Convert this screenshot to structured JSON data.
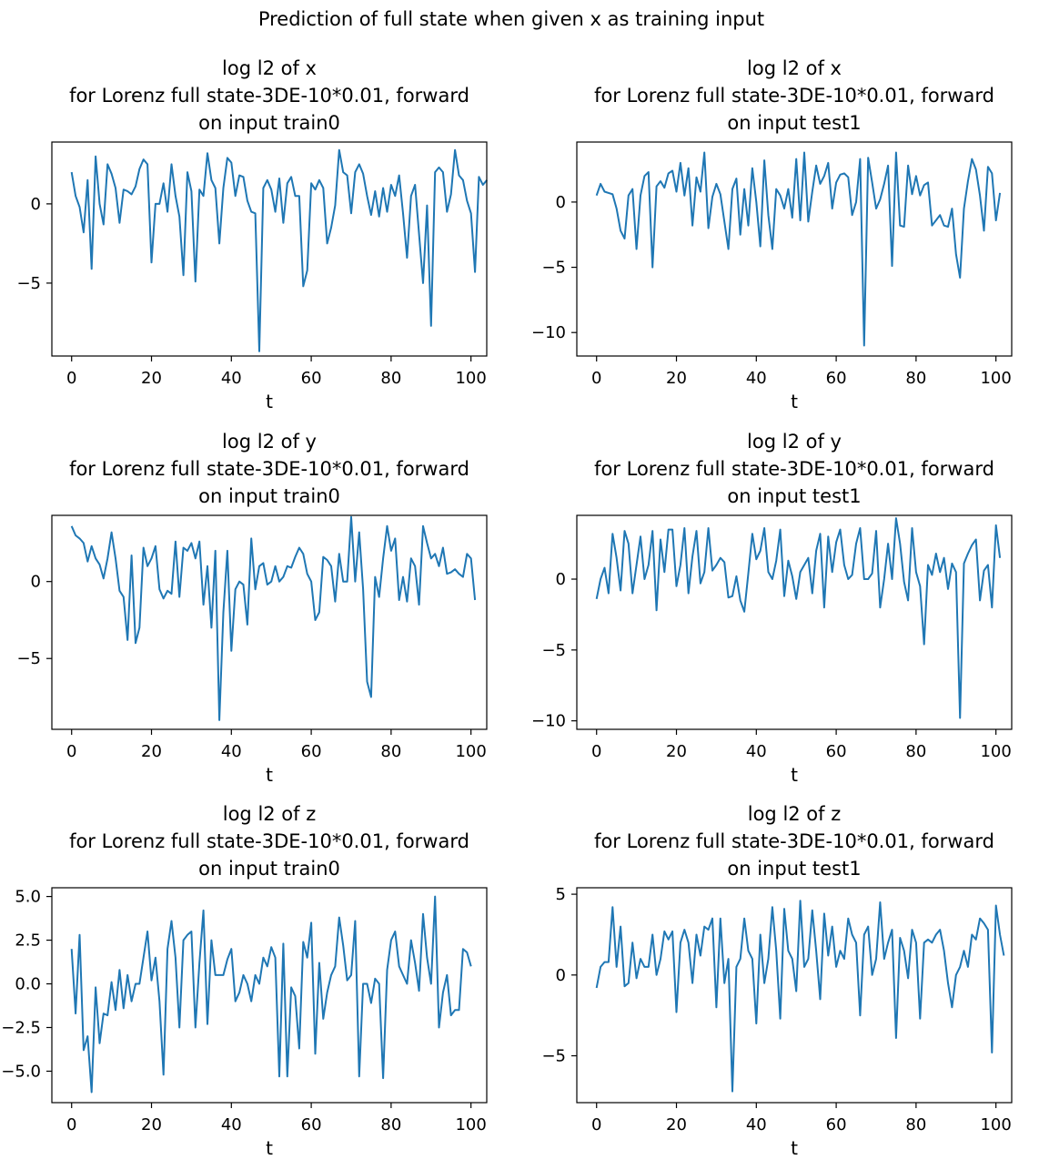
{
  "suptitle": "Prediction of full state when given x as training input",
  "line_color": "#1f77b4",
  "chart_data": [
    {
      "type": "line",
      "title_lines": [
        "log l2 of x",
        "for Lorenz full state-3DE-10*0.01, forward",
        "on input train0"
      ],
      "xlabel": "t",
      "ylabel": "",
      "xlim": [
        -4.95,
        103.95
      ],
      "ylim": [
        -9.6,
        3.9
      ],
      "xticks": [
        0,
        20,
        40,
        60,
        80,
        100
      ],
      "xtick_labels": [
        "0",
        "20",
        "40",
        "60",
        "80",
        "100"
      ],
      "yticks": [
        0,
        -5
      ],
      "ytick_labels": [
        "0",
        "−5"
      ],
      "series": [
        {
          "values": [
            2.0,
            0.5,
            -0.2,
            -1.8,
            1.5,
            -4.1,
            3.0,
            0.0,
            -1.3,
            2.5,
            1.9,
            1.0,
            -1.2,
            0.9,
            0.8,
            0.6,
            1.1,
            2.2,
            2.8,
            2.5,
            -3.7,
            0.0,
            0.0,
            1.3,
            -0.5,
            2.5,
            0.5,
            -0.8,
            -4.5,
            2.0,
            0.8,
            -4.9,
            0.9,
            0.5,
            3.2,
            1.5,
            1.0,
            -2.5,
            1.0,
            2.9,
            2.6,
            0.5,
            1.8,
            1.7,
            0.2,
            -0.5,
            -0.6,
            -9.3,
            1.0,
            1.5,
            0.9,
            -0.5,
            1.6,
            -1.2,
            1.3,
            1.7,
            0.5,
            0.5,
            -5.2,
            -4.2,
            1.3,
            0.9,
            1.5,
            1.0,
            -2.5,
            -1.5,
            -0.1,
            3.4,
            2.0,
            1.8,
            -0.6,
            2.0,
            2.5,
            1.9,
            0.5,
            -0.7,
            0.8,
            -0.8,
            1.0,
            -0.5,
            1.2,
            0.5,
            1.8,
            -0.6,
            -3.4,
            0.5,
            1.2,
            -1.9,
            -5.0,
            -0.1,
            -7.7,
            2.0,
            2.3,
            2.0,
            -0.5,
            0.6,
            3.4,
            1.8,
            1.5,
            0.2,
            -0.6,
            -4.3,
            1.7,
            1.2,
            1.5
          ]
        }
      ]
    },
    {
      "type": "line",
      "title_lines": [
        "log l2 of x",
        "for Lorenz full state-3DE-10*0.01, forward",
        "on input test1"
      ],
      "xlabel": "t",
      "ylabel": "",
      "xlim": [
        -4.95,
        103.95
      ],
      "ylim": [
        -11.8,
        4.6
      ],
      "xticks": [
        0,
        20,
        40,
        60,
        80,
        100
      ],
      "xtick_labels": [
        "0",
        "20",
        "40",
        "60",
        "80",
        "100"
      ],
      "yticks": [
        0,
        -5,
        -10
      ],
      "ytick_labels": [
        "0",
        "−5",
        "−10"
      ],
      "series": [
        {
          "values": [
            0.5,
            1.4,
            0.8,
            0.7,
            0.6,
            -0.5,
            -2.2,
            -2.8,
            0.5,
            1.0,
            -3.6,
            0.5,
            2.0,
            2.3,
            -5.0,
            1.2,
            1.6,
            1.1,
            2.2,
            2.4,
            0.8,
            3.0,
            0.5,
            2.6,
            -1.8,
            1.9,
            0.8,
            3.8,
            -2.0,
            0.4,
            1.4,
            0.6,
            -1.5,
            -3.6,
            1.0,
            1.8,
            -2.5,
            1.0,
            -1.8,
            2.6,
            0.0,
            -3.4,
            3.2,
            -1.0,
            -3.6,
            1.0,
            0.5,
            -0.5,
            1.0,
            -1.2,
            3.3,
            -1.4,
            3.8,
            -1.5,
            0.8,
            2.8,
            1.4,
            2.0,
            3.0,
            -0.5,
            1.5,
            2.1,
            2.2,
            1.9,
            -1.0,
            0.0,
            3.3,
            -11.0,
            3.4,
            1.5,
            -0.5,
            0.2,
            1.4,
            2.8,
            -4.9,
            3.8,
            -1.8,
            -1.9,
            2.8,
            0.6,
            2.0,
            0.5,
            1.3,
            1.5,
            -1.8,
            -1.4,
            -1.0,
            -1.8,
            -1.9,
            -0.5,
            -4.0,
            -5.8,
            -0.5,
            1.6,
            3.3,
            2.5,
            0.5,
            -2.2,
            2.7,
            2.2,
            -1.4,
            0.7
          ]
        }
      ]
    },
    {
      "type": "line",
      "title_lines": [
        "log l2 of y",
        "for Lorenz full state-3DE-10*0.01, forward",
        "on input train0"
      ],
      "xlabel": "t",
      "ylabel": "",
      "xlim": [
        -4.95,
        103.95
      ],
      "ylim": [
        -9.6,
        4.3
      ],
      "xticks": [
        0,
        20,
        40,
        60,
        80,
        100
      ],
      "xtick_labels": [
        "0",
        "20",
        "40",
        "60",
        "80",
        "100"
      ],
      "yticks": [
        0,
        -5
      ],
      "ytick_labels": [
        "0",
        "−5"
      ],
      "series": [
        {
          "values": [
            3.6,
            3.0,
            2.8,
            2.5,
            1.3,
            2.3,
            1.5,
            1.1,
            0.2,
            1.5,
            3.2,
            1.5,
            -0.6,
            -1.0,
            -3.8,
            1.7,
            -4.0,
            -3.0,
            2.2,
            1.0,
            1.5,
            2.3,
            -0.5,
            -1.1,
            -0.6,
            -0.8,
            2.6,
            -1.0,
            2.2,
            2.0,
            2.5,
            1.5,
            2.6,
            -1.5,
            1.0,
            -3.0,
            2.0,
            -9.0,
            -2.0,
            2.0,
            -4.5,
            -0.5,
            0.0,
            -0.2,
            -2.8,
            2.8,
            -0.5,
            1.0,
            1.2,
            -0.2,
            0.0,
            1.0,
            0.0,
            0.3,
            1.0,
            0.9,
            1.6,
            2.2,
            1.8,
            0.5,
            0.0,
            -2.5,
            -2.0,
            1.6,
            1.4,
            1.0,
            -1.3,
            1.8,
            0.0,
            0.0,
            4.2,
            0.0,
            3.2,
            -0.5,
            -6.5,
            -7.5,
            0.3,
            -1.0,
            1.5,
            3.6,
            2.0,
            2.8,
            -1.2,
            0.3,
            -1.3,
            1.5,
            1.0,
            -1.5,
            3.6,
            2.5,
            1.5,
            1.8,
            1.0,
            2.2,
            0.5,
            0.6,
            0.8,
            0.5,
            0.3,
            1.8,
            1.5,
            -1.2
          ]
        }
      ]
    },
    {
      "type": "line",
      "title_lines": [
        "log l2 of y",
        "for Lorenz full state-3DE-10*0.01, forward",
        "on input test1"
      ],
      "xlabel": "t",
      "ylabel": "",
      "xlim": [
        -4.95,
        103.95
      ],
      "ylim": [
        -10.6,
        4.5
      ],
      "xticks": [
        0,
        20,
        40,
        60,
        80,
        100
      ],
      "xtick_labels": [
        "0",
        "20",
        "40",
        "60",
        "80",
        "100"
      ],
      "yticks": [
        0,
        -5,
        -10
      ],
      "ytick_labels": [
        "0",
        "−5",
        "−10"
      ],
      "series": [
        {
          "values": [
            -1.4,
            0.0,
            0.8,
            -1.0,
            3.2,
            1.5,
            -0.8,
            3.4,
            2.5,
            -1.0,
            1.0,
            3.0,
            0.0,
            1.0,
            3.4,
            -2.2,
            2.8,
            0.5,
            3.5,
            3.5,
            -0.5,
            1.0,
            3.6,
            -1.0,
            1.6,
            3.4,
            -0.3,
            0.5,
            3.6,
            0.6,
            1.0,
            1.5,
            1.2,
            -1.3,
            -1.2,
            0.2,
            -1.5,
            -2.3,
            0.4,
            3.2,
            1.4,
            2.0,
            3.6,
            0.5,
            0.0,
            1.3,
            3.5,
            -1.2,
            1.3,
            0.2,
            -1.4,
            0.5,
            1.0,
            1.5,
            -1.0,
            2.0,
            3.2,
            -2.0,
            3.0,
            0.5,
            2.6,
            3.5,
            1.0,
            0.0,
            0.3,
            2.5,
            3.6,
            0.0,
            0.0,
            0.4,
            3.4,
            -2.0,
            0.0,
            2.5,
            0.0,
            4.3,
            2.5,
            -0.2,
            -1.5,
            3.6,
            0.5,
            -0.5,
            -4.6,
            1.0,
            0.3,
            1.8,
            0.5,
            1.5,
            -0.7,
            1.1,
            0.5,
            -9.8,
            1.1,
            1.8,
            2.4,
            2.8,
            -1.5,
            0.6,
            1.0,
            -2.0,
            3.8,
            1.5
          ]
        }
      ]
    },
    {
      "type": "line",
      "title_lines": [
        "log l2 of z",
        "for Lorenz full state-3DE-10*0.01, forward",
        "on input train0"
      ],
      "xlabel": "t",
      "ylabel": "",
      "xlim": [
        -4.95,
        103.95
      ],
      "ylim": [
        -6.8,
        5.5
      ],
      "xticks": [
        0,
        20,
        40,
        60,
        80,
        100
      ],
      "xtick_labels": [
        "0",
        "20",
        "40",
        "60",
        "80",
        "100"
      ],
      "yticks": [
        5.0,
        2.5,
        0.0,
        -2.5,
        -5.0
      ],
      "ytick_labels": [
        "5.0",
        "2.5",
        "0.0",
        "−2.5",
        "−5.0"
      ],
      "series": [
        {
          "values": [
            2.0,
            -1.7,
            2.8,
            -3.8,
            -3.0,
            -6.2,
            -0.2,
            -3.4,
            -1.7,
            -1.8,
            0.1,
            -1.5,
            0.8,
            -1.4,
            0.5,
            -1.0,
            0.0,
            0.0,
            1.5,
            3.0,
            0.2,
            1.5,
            -1.0,
            -5.2,
            2.0,
            3.6,
            1.5,
            -2.5,
            2.5,
            2.8,
            3.0,
            -2.5,
            1.2,
            4.2,
            -2.3,
            2.5,
            0.5,
            0.5,
            0.5,
            1.4,
            2.0,
            -1.0,
            -0.5,
            0.5,
            0.0,
            -1.0,
            0.5,
            0.0,
            1.5,
            1.0,
            2.1,
            1.5,
            -5.3,
            2.3,
            -5.3,
            -0.2,
            -0.7,
            -3.7,
            2.4,
            1.5,
            3.5,
            -4.0,
            1.2,
            -2.0,
            -0.5,
            0.5,
            1.0,
            3.8,
            2.2,
            0.2,
            0.5,
            3.6,
            -5.3,
            0.0,
            0.0,
            -1.1,
            0.3,
            0.0,
            -5.4,
            0.8,
            2.5,
            3.0,
            1.0,
            0.5,
            0.0,
            2.5,
            1.2,
            -0.4,
            4.0,
            1.5,
            0.0,
            5.0,
            -2.5,
            -0.5,
            0.5,
            -1.8,
            -1.5,
            -1.5,
            2.0,
            1.8,
            1.0
          ]
        }
      ]
    },
    {
      "type": "line",
      "title_lines": [
        "log l2 of z",
        "for Lorenz full state-3DE-10*0.01, forward",
        "on input test1"
      ],
      "xlabel": "t",
      "ylabel": "",
      "xlim": [
        -4.95,
        103.95
      ],
      "ylim": [
        -7.9,
        5.4
      ],
      "xticks": [
        0,
        20,
        40,
        60,
        80,
        100
      ],
      "xtick_labels": [
        "0",
        "20",
        "40",
        "60",
        "80",
        "100"
      ],
      "yticks": [
        5,
        0,
        -5
      ],
      "ytick_labels": [
        "5",
        "0",
        "−5"
      ],
      "series": [
        {
          "values": [
            -0.8,
            0.5,
            0.8,
            0.8,
            4.2,
            0.5,
            3.0,
            -0.7,
            -0.5,
            2.0,
            -0.2,
            1.0,
            0.5,
            0.5,
            2.5,
            0.0,
            1.0,
            2.7,
            2.2,
            2.7,
            -2.3,
            2.0,
            2.8,
            2.0,
            -0.5,
            2.5,
            1.2,
            3.0,
            2.8,
            3.5,
            -2.0,
            3.5,
            -0.5,
            1.0,
            -7.2,
            0.5,
            1.0,
            3.5,
            1.5,
            1.0,
            -3.0,
            2.5,
            -0.5,
            1.0,
            4.2,
            1.5,
            -2.7,
            4.1,
            1.5,
            1.0,
            -1.0,
            4.6,
            0.5,
            1.0,
            4.0,
            1.5,
            -1.5,
            3.8,
            1.2,
            3.0,
            0.5,
            1.5,
            1.0,
            3.5,
            2.5,
            2.0,
            -2.5,
            2.5,
            3.0,
            0.0,
            1.0,
            4.5,
            1.0,
            2.0,
            2.8,
            -3.9,
            2.3,
            1.5,
            -0.2,
            2.8,
            2.0,
            -2.7,
            2.0,
            2.2,
            2.0,
            2.5,
            2.8,
            1.5,
            -0.5,
            -2.0,
            0.0,
            0.5,
            1.5,
            0.5,
            2.5,
            2.2,
            3.5,
            3.2,
            2.8,
            -4.8,
            4.3,
            2.5,
            1.2
          ]
        }
      ]
    }
  ]
}
